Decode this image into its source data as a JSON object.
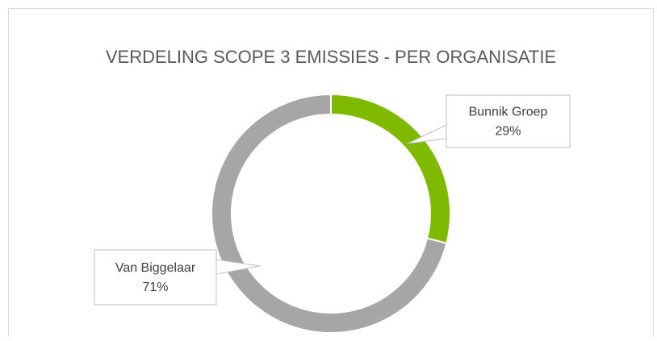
{
  "chart_data": {
    "type": "donut",
    "title": "VERDELING SCOPE 3 EMISSIES - PER ORGANISATIE",
    "categories": [
      "Bunnik Groep",
      "Van Biggelaar"
    ],
    "values": [
      29,
      71
    ],
    "value_labels": [
      "29%",
      "71%"
    ],
    "colors": [
      "#7fba00",
      "#a6a6a6"
    ]
  }
}
